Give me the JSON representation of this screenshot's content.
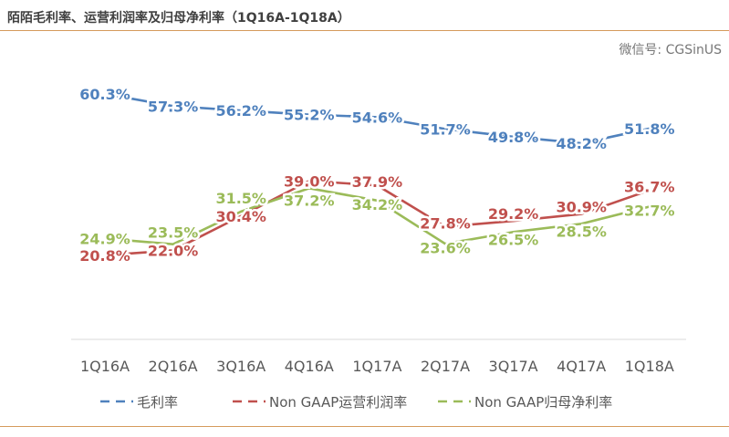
{
  "title": "陌陌毛利率、运营利润率及归母净利率（1Q16A-1Q18A）",
  "watermark": "微信号: CGSinUS",
  "chart_data": {
    "type": "line",
    "title": "陌陌毛利率、运营利润率及归母净利率（1Q16A-1Q18A）",
    "categories": [
      "1Q16A",
      "2Q16A",
      "3Q16A",
      "4Q16A",
      "1Q17A",
      "2Q17A",
      "3Q17A",
      "4Q17A",
      "1Q18A"
    ],
    "ylim": [
      0,
      75
    ],
    "grid": false,
    "legend_position": "bottom",
    "series": [
      {
        "name": "毛利率",
        "color": "#4f81bd",
        "values": [
          60.3,
          57.3,
          56.2,
          55.2,
          54.6,
          51.7,
          49.8,
          48.2,
          51.8
        ]
      },
      {
        "name": "Non GAAP运营利润率",
        "color": "#c0504d",
        "values": [
          20.8,
          22.0,
          30.4,
          39.0,
          37.9,
          27.8,
          29.2,
          30.9,
          36.7
        ]
      },
      {
        "name": "Non GAAP归母净利率",
        "color": "#9bbb59",
        "values": [
          24.9,
          23.5,
          31.5,
          37.2,
          34.2,
          23.6,
          26.5,
          28.5,
          32.7
        ]
      }
    ]
  }
}
